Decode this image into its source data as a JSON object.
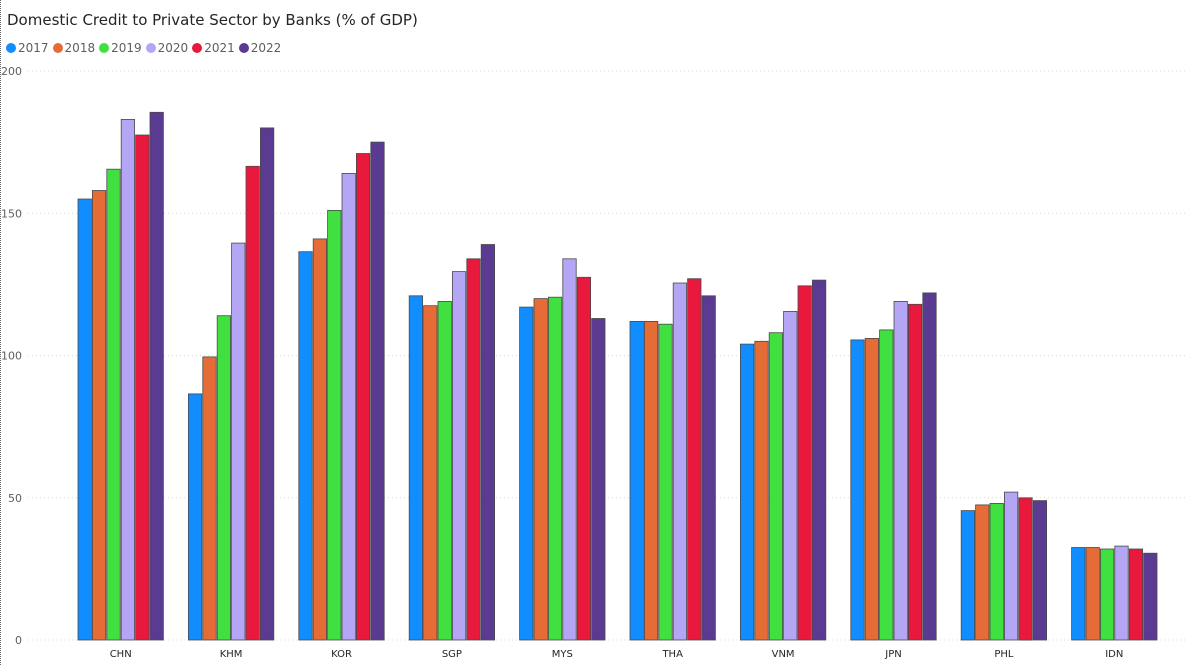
{
  "chart_data": {
    "type": "bar",
    "title": "Domestic Credit to Private Sector by Banks (% of GDP)",
    "xlabel": "",
    "ylabel": "",
    "ylim": [
      0,
      200
    ],
    "yticks": [
      "0",
      "50",
      "100",
      "150",
      "200"
    ],
    "ytick_values": [
      0,
      50,
      100,
      150,
      200
    ],
    "grid": true,
    "legend_position": "top-left",
    "categories": [
      "CHN",
      "KHM",
      "KOR",
      "SGP",
      "MYS",
      "THA",
      "VNM",
      "JPN",
      "PHL",
      "IDN"
    ],
    "series": [
      {
        "name": "2017",
        "color": "#118dff",
        "values": [
          155,
          86.5,
          136.5,
          121,
          117,
          112,
          104,
          105.5,
          45.5,
          32.5
        ]
      },
      {
        "name": "2018",
        "color": "#e66c37",
        "values": [
          158,
          99.5,
          141,
          117.5,
          120,
          112,
          105,
          106,
          47.5,
          32.5
        ]
      },
      {
        "name": "2019",
        "color": "#3fe03f",
        "values": [
          165.5,
          114,
          151,
          119,
          120.5,
          111,
          108,
          109,
          48,
          32
        ]
      },
      {
        "name": "2020",
        "color": "#b5a6f5",
        "values": [
          183,
          139.5,
          164,
          129.5,
          134,
          125.5,
          115.5,
          119,
          52,
          33
        ]
      },
      {
        "name": "2021",
        "color": "#e8193c",
        "values": [
          177.5,
          166.5,
          171,
          134,
          127.5,
          127,
          124.5,
          118,
          50,
          32
        ]
      },
      {
        "name": "2022",
        "color": "#5b3a91",
        "values": [
          185.5,
          180,
          175,
          139,
          113,
          121,
          126.5,
          122,
          49,
          30.5
        ]
      }
    ]
  }
}
